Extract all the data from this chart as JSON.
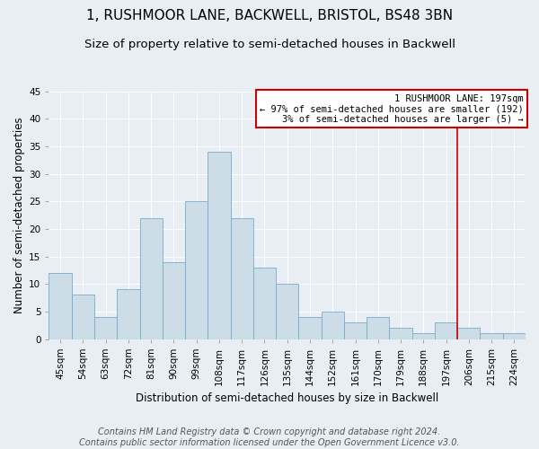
{
  "title": "1, RUSHMOOR LANE, BACKWELL, BRISTOL, BS48 3BN",
  "subtitle": "Size of property relative to semi-detached houses in Backwell",
  "xlabel_bottom": "Distribution of semi-detached houses by size in Backwell",
  "ylabel": "Number of semi-detached properties",
  "footnote": "Contains HM Land Registry data © Crown copyright and database right 2024.\nContains public sector information licensed under the Open Government Licence v3.0.",
  "bins": [
    "45sqm",
    "54sqm",
    "63sqm",
    "72sqm",
    "81sqm",
    "90sqm",
    "99sqm",
    "108sqm",
    "117sqm",
    "126sqm",
    "135sqm",
    "144sqm",
    "152sqm",
    "161sqm",
    "170sqm",
    "179sqm",
    "188sqm",
    "197sqm",
    "206sqm",
    "215sqm",
    "224sqm"
  ],
  "values": [
    12,
    8,
    4,
    9,
    22,
    14,
    25,
    34,
    22,
    13,
    10,
    4,
    5,
    3,
    4,
    2,
    1,
    3,
    2,
    1,
    1
  ],
  "bar_color": "#ccdde8",
  "bar_edge_color": "#7aabcc",
  "bar_width": 1.0,
  "red_line_x": 17.5,
  "red_line_color": "#cc0000",
  "annotation_text": "1 RUSHMOOR LANE: 197sqm\n← 97% of semi-detached houses are smaller (192)\n3% of semi-detached houses are larger (5) →",
  "annotation_box_color": "#cc0000",
  "ylim": [
    0,
    45
  ],
  "yticks": [
    0,
    5,
    10,
    15,
    20,
    25,
    30,
    35,
    40,
    45
  ],
  "background_color": "#e8eef4",
  "plot_background_color": "#e8eef4",
  "title_fontsize": 11,
  "subtitle_fontsize": 9.5,
  "label_fontsize": 8.5,
  "tick_fontsize": 7.5,
  "footnote_fontsize": 7
}
